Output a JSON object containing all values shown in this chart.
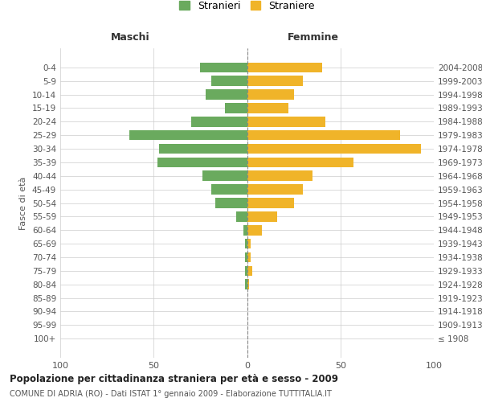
{
  "age_groups": [
    "100+",
    "95-99",
    "90-94",
    "85-89",
    "80-84",
    "75-79",
    "70-74",
    "65-69",
    "60-64",
    "55-59",
    "50-54",
    "45-49",
    "40-44",
    "35-39",
    "30-34",
    "25-29",
    "20-24",
    "15-19",
    "10-14",
    "5-9",
    "0-4"
  ],
  "birth_years": [
    "≤ 1908",
    "1909-1913",
    "1914-1918",
    "1919-1923",
    "1924-1928",
    "1929-1933",
    "1934-1938",
    "1939-1943",
    "1944-1948",
    "1949-1953",
    "1954-1958",
    "1959-1963",
    "1964-1968",
    "1969-1973",
    "1974-1978",
    "1979-1983",
    "1984-1988",
    "1989-1993",
    "1994-1998",
    "1999-2003",
    "2004-2008"
  ],
  "maschi": [
    0,
    0,
    0,
    0,
    1,
    1,
    1,
    1,
    2,
    6,
    17,
    19,
    24,
    48,
    47,
    63,
    30,
    12,
    22,
    19,
    25
  ],
  "femmine": [
    0,
    0,
    0,
    0,
    1,
    3,
    2,
    2,
    8,
    16,
    25,
    30,
    35,
    57,
    93,
    82,
    42,
    22,
    25,
    30,
    40
  ],
  "maschi_color": "#6aaa5e",
  "femmine_color": "#f0b429",
  "title_main": "Popolazione per cittadinanza straniera per età e sesso - 2009",
  "title_sub": "COMUNE DI ADRIA (RO) - Dati ISTAT 1° gennaio 2009 - Elaborazione TUTTITALIA.IT",
  "legend_maschi": "Stranieri",
  "legend_femmine": "Straniere",
  "xlabel_left": "Maschi",
  "xlabel_right": "Femmine",
  "ylabel_left": "Fasce di età",
  "xlim": 100,
  "background_color": "#ffffff",
  "grid_color": "#cccccc"
}
